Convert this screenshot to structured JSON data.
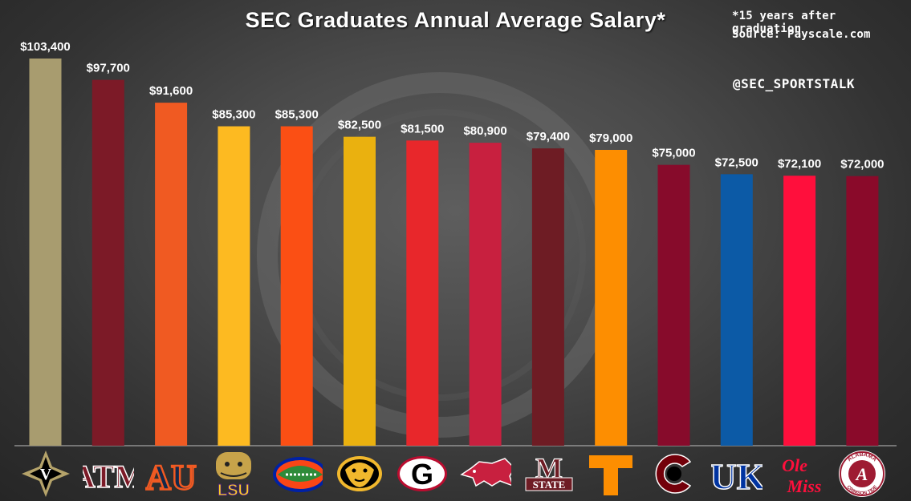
{
  "header": {
    "title": "SEC Graduates Annual Average Salary*",
    "footnote": "*15 years after graduation",
    "source": "Source: Payscale.com",
    "handle": "@SEC_SPORTSTALK"
  },
  "chart_data": {
    "type": "bar",
    "title": "SEC Graduates Annual Average Salary*",
    "xlabel": "",
    "ylabel": "",
    "ylim": [
      0,
      105000
    ],
    "grid": false,
    "categories": [
      "Vanderbilt",
      "Texas A&M",
      "Auburn",
      "LSU",
      "Florida",
      "Missouri",
      "Georgia",
      "Arkansas",
      "Mississippi State",
      "Tennessee",
      "South Carolina",
      "Kentucky",
      "Ole Miss",
      "Alabama"
    ],
    "values": [
      103400,
      97700,
      91600,
      85300,
      85300,
      82500,
      81500,
      80900,
      79400,
      79000,
      75000,
      72500,
      72100,
      72000
    ],
    "value_labels": [
      "$103,400",
      "$97,700",
      "$91,600",
      "$85,300",
      "$85,300",
      "$82,500",
      "$81,500",
      "$80,900",
      "$79,400",
      "$79,000",
      "$75,000",
      "$72,500",
      "$72,100",
      "$72,000"
    ],
    "colors": [
      "#a89c6f",
      "#7c1a27",
      "#f05a22",
      "#fdba21",
      "#fb4f14",
      "#eab10f",
      "#e8272b",
      "#c8203f",
      "#6e1c24",
      "#fd8e01",
      "#870b2b",
      "#0c5aa6",
      "#ff0f3c",
      "#8a0a2a"
    ]
  },
  "logos": [
    {
      "text": "V",
      "name": "vanderbilt-logo",
      "color": "#ffffff",
      "bg": "#000000"
    },
    {
      "text": "ATM",
      "name": "texas-am-logo",
      "color": "#7c1a27",
      "bg": ""
    },
    {
      "text": "AU",
      "name": "auburn-logo",
      "color": "#13294b",
      "bg": ""
    },
    {
      "text": "LSU",
      "name": "lsu-logo",
      "color": "#fdd023",
      "bg": ""
    },
    {
      "text": "gator",
      "name": "florida-gator-logo",
      "color": "#fa4616",
      "bg": ""
    },
    {
      "text": "tiger",
      "name": "missouri-tiger-logo",
      "color": "#f1b82d",
      "bg": ""
    },
    {
      "text": "G",
      "name": "georgia-logo",
      "color": "#000000",
      "bg": ""
    },
    {
      "text": "hog",
      "name": "arkansas-razorback-logo",
      "color": "#c8203f",
      "bg": ""
    },
    {
      "text": "STATE",
      "name": "mississippi-state-logo",
      "color": "#6e1c24",
      "bg": ""
    },
    {
      "text": "T",
      "name": "tennessee-logo",
      "color": "#fd8e01",
      "bg": ""
    },
    {
      "text": "C",
      "name": "south-carolina-logo",
      "color": "#73000a",
      "bg": ""
    },
    {
      "text": "UK",
      "name": "kentucky-logo",
      "color": "#0033a0",
      "bg": ""
    },
    {
      "text": "Ole Miss",
      "name": "ole-miss-logo",
      "color": "#ff0f3c",
      "bg": ""
    },
    {
      "text": "ALABAMA CRIMSON TIDE",
      "name": "alabama-logo",
      "color": "#9e1b32",
      "bg": ""
    }
  ]
}
